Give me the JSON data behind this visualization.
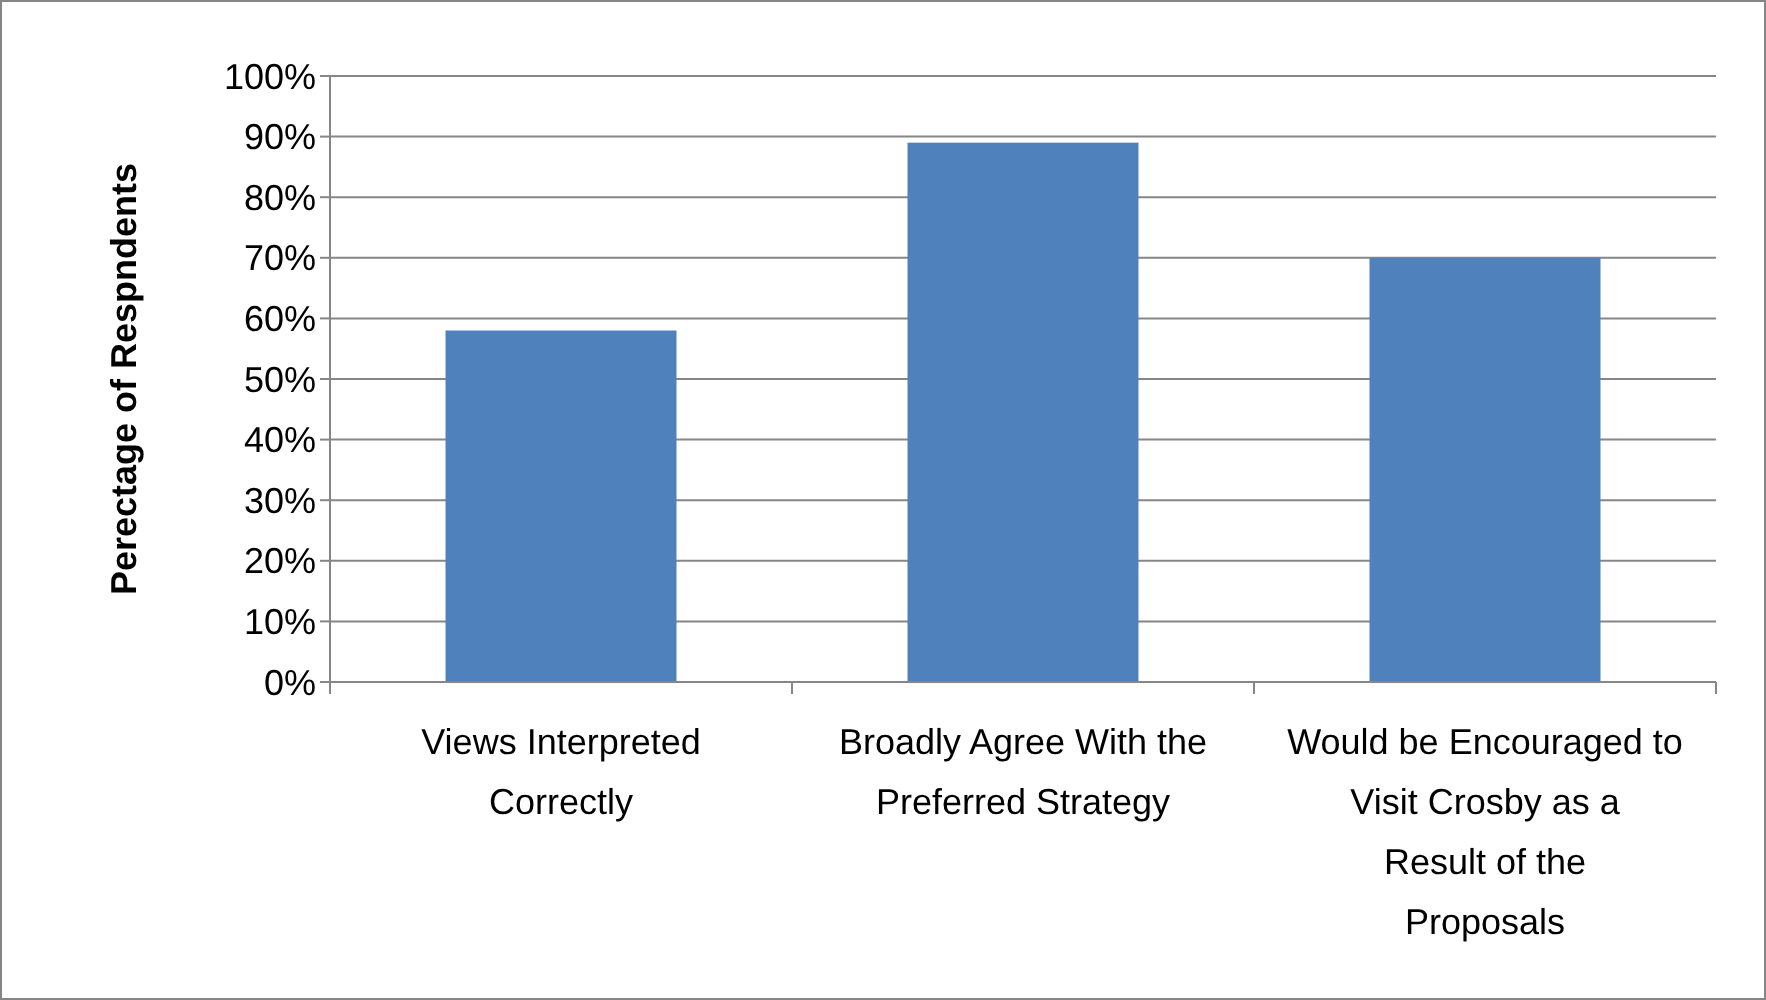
{
  "chart_data": {
    "type": "bar",
    "ylabel": "Perectage of Respndents",
    "categories": [
      "Views Interpreted Correctly",
      "Broadly Agree With the Preferred Strategy",
      "Would be Encouraged to Visit Crosby as a Result of the Proposals"
    ],
    "values": [
      58,
      89,
      70
    ],
    "color": "#4f81bd",
    "ylim": [
      0,
      100
    ],
    "yticks": [
      {
        "value": 0,
        "label": "0%"
      },
      {
        "value": 10,
        "label": "10%"
      },
      {
        "value": 20,
        "label": "20%"
      },
      {
        "value": 30,
        "label": "30%"
      },
      {
        "value": 40,
        "label": "40%"
      },
      {
        "value": 50,
        "label": "50%"
      },
      {
        "value": 60,
        "label": "60%"
      },
      {
        "value": 70,
        "label": "70%"
      },
      {
        "value": 80,
        "label": "80%"
      },
      {
        "value": 90,
        "label": "90%"
      },
      {
        "value": 100,
        "label": "100%"
      }
    ],
    "grid": "y"
  }
}
